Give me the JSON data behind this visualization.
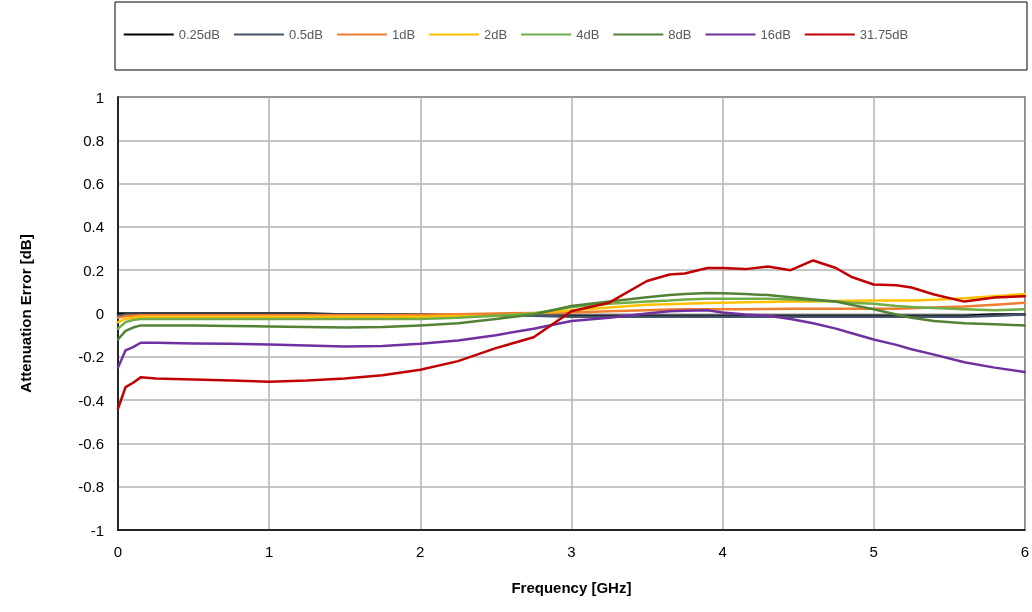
{
  "chart_data": {
    "type": "line",
    "xlabel": "Frequency [GHz]",
    "ylabel": "Attenuation Error [dB]",
    "x": [
      0,
      0.05,
      0.1,
      0.15,
      0.25,
      0.5,
      0.75,
      1,
      1.25,
      1.5,
      1.75,
      2,
      2.25,
      2.5,
      2.75,
      3,
      3.25,
      3.5,
      3.65,
      3.75,
      3.9,
      4,
      4.15,
      4.3,
      4.45,
      4.6,
      4.75,
      4.85,
      5,
      5.15,
      5.25,
      5.4,
      5.6,
      5.8,
      6
    ],
    "xlim": [
      0,
      6
    ],
    "xticks": [
      0,
      1,
      2,
      3,
      4,
      5,
      6
    ],
    "ylim": [
      -1,
      1
    ],
    "yticks": [
      -1,
      -0.8,
      -0.6,
      -0.4,
      -0.2,
      0,
      0.2,
      0.4,
      0.6,
      0.8,
      1
    ],
    "grid": true,
    "legend": "top",
    "marker": "none",
    "line_style": "solid",
    "series": [
      {
        "name": "0.25dB",
        "color": "#000000",
        "values": [
          0,
          0,
          0,
          0,
          0,
          0,
          0,
          0,
          0,
          -0.005,
          -0.005,
          -0.005,
          -0.01,
          -0.01,
          -0.01,
          -0.01,
          -0.01,
          -0.01,
          -0.01,
          -0.01,
          -0.01,
          -0.01,
          -0.01,
          -0.01,
          -0.01,
          -0.01,
          -0.01,
          -0.01,
          -0.01,
          -0.01,
          -0.01,
          -0.01,
          -0.01,
          -0.005,
          -0.005
        ]
      },
      {
        "name": "0.5dB",
        "color": "#44546a",
        "values": [
          -0.01,
          -0.005,
          -0.005,
          -0.005,
          -0.005,
          -0.005,
          -0.005,
          -0.005,
          -0.005,
          -0.005,
          -0.005,
          -0.005,
          -0.01,
          -0.01,
          -0.01,
          -0.015,
          -0.015,
          -0.015,
          -0.015,
          -0.015,
          -0.015,
          -0.015,
          -0.015,
          -0.015,
          -0.015,
          -0.015,
          -0.015,
          -0.015,
          -0.015,
          -0.015,
          -0.015,
          -0.015,
          -0.015,
          -0.01,
          -0.005
        ]
      },
      {
        "name": "1dB",
        "color": "#ed7d31",
        "values": [
          -0.02,
          -0.012,
          -0.01,
          -0.008,
          -0.008,
          -0.008,
          -0.008,
          -0.008,
          -0.008,
          -0.008,
          -0.008,
          -0.006,
          -0.004,
          0,
          0.002,
          0.005,
          0.01,
          0.015,
          0.018,
          0.02,
          0.02,
          0.02,
          0.02,
          0.021,
          0.022,
          0.022,
          0.022,
          0.022,
          0.022,
          0.022,
          0.024,
          0.028,
          0.032,
          0.04,
          0.05
        ]
      },
      {
        "name": "2dB",
        "color": "#ffc000",
        "values": [
          -0.04,
          -0.025,
          -0.02,
          -0.015,
          -0.015,
          -0.015,
          -0.015,
          -0.015,
          -0.015,
          -0.015,
          -0.015,
          -0.015,
          -0.012,
          -0.01,
          0,
          0.015,
          0.028,
          0.04,
          0.043,
          0.045,
          0.048,
          0.05,
          0.052,
          0.053,
          0.055,
          0.056,
          0.058,
          0.059,
          0.06,
          0.06,
          0.06,
          0.064,
          0.07,
          0.08,
          0.09
        ]
      },
      {
        "name": "4dB",
        "color": "#70ad47",
        "values": [
          -0.07,
          -0.04,
          -0.03,
          -0.025,
          -0.025,
          -0.025,
          -0.025,
          -0.025,
          -0.025,
          -0.025,
          -0.025,
          -0.025,
          -0.02,
          -0.01,
          0,
          0.03,
          0.045,
          0.055,
          0.06,
          0.065,
          0.068,
          0.068,
          0.068,
          0.068,
          0.065,
          0.06,
          0.055,
          0.05,
          0.045,
          0.035,
          0.03,
          0.025,
          0.02,
          0.015,
          0.02
        ]
      },
      {
        "name": "8dB",
        "color": "#548235",
        "values": [
          -0.12,
          -0.08,
          -0.065,
          -0.055,
          -0.055,
          -0.055,
          -0.058,
          -0.06,
          -0.062,
          -0.065,
          -0.062,
          -0.055,
          -0.045,
          -0.025,
          -0.005,
          0.035,
          0.055,
          0.075,
          0.085,
          0.09,
          0.095,
          0.093,
          0.09,
          0.085,
          0.075,
          0.065,
          0.055,
          0.04,
          0.02,
          -0.005,
          -0.02,
          -0.035,
          -0.045,
          -0.05,
          -0.055
        ]
      },
      {
        "name": "16dB",
        "color": "#7030a0",
        "values": [
          -0.25,
          -0.17,
          -0.155,
          -0.135,
          -0.135,
          -0.138,
          -0.14,
          -0.143,
          -0.148,
          -0.152,
          -0.15,
          -0.14,
          -0.125,
          -0.1,
          -0.07,
          -0.035,
          -0.02,
          0,
          0.01,
          0.013,
          0.015,
          0.005,
          -0.005,
          -0.01,
          -0.025,
          -0.045,
          -0.07,
          -0.09,
          -0.12,
          -0.145,
          -0.165,
          -0.19,
          -0.225,
          -0.25,
          -0.27
        ]
      },
      {
        "name": "31.75dB",
        "color": "#c00000",
        "values": [
          -0.44,
          -0.34,
          -0.32,
          -0.295,
          -0.3,
          -0.305,
          -0.31,
          -0.315,
          -0.31,
          -0.3,
          -0.285,
          -0.26,
          -0.22,
          -0.16,
          -0.11,
          0.01,
          0.05,
          0.15,
          0.18,
          0.185,
          0.21,
          0.21,
          0.205,
          0.217,
          0.2,
          0.245,
          0.21,
          0.17,
          0.134,
          0.13,
          0.12,
          0.088,
          0.055,
          0.074,
          0.08
        ]
      }
    ]
  }
}
